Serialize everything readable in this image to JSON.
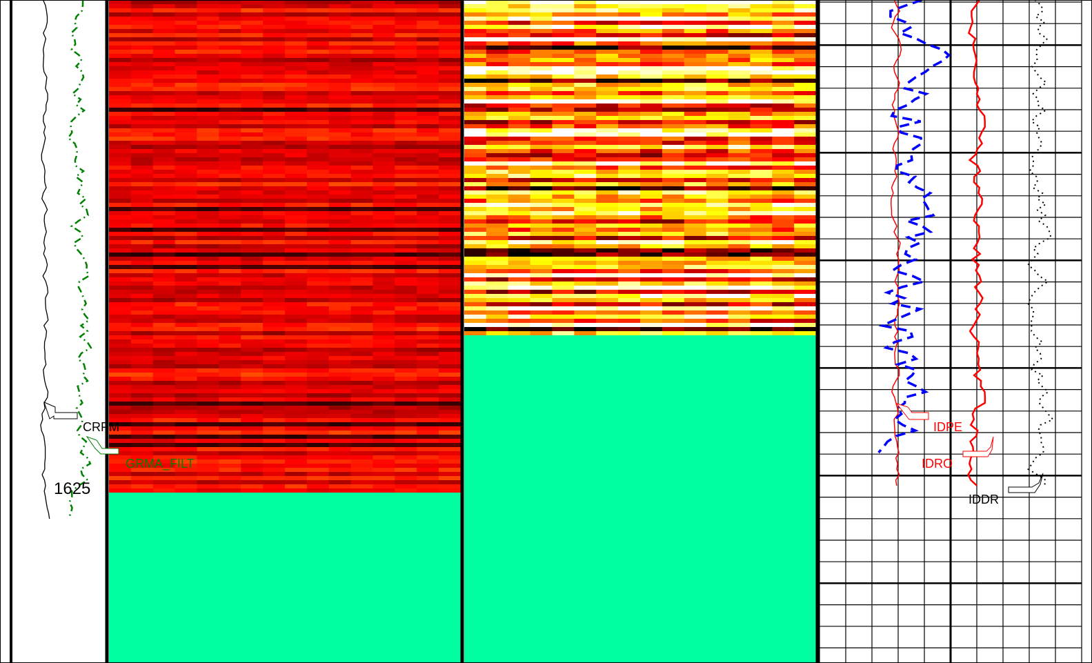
{
  "depth_label": "1625",
  "curves": [
    {
      "name": "CRPM",
      "color": "#000000"
    },
    {
      "name": "GRMA_FILT",
      "color": "#008000"
    },
    {
      "name": "IDPE",
      "color": "#ff0000"
    },
    {
      "name": "IDRO",
      "color": "#ff0000"
    },
    {
      "name": "IDDR",
      "color": "#000000"
    }
  ],
  "fill_color": "#00ff9f"
}
